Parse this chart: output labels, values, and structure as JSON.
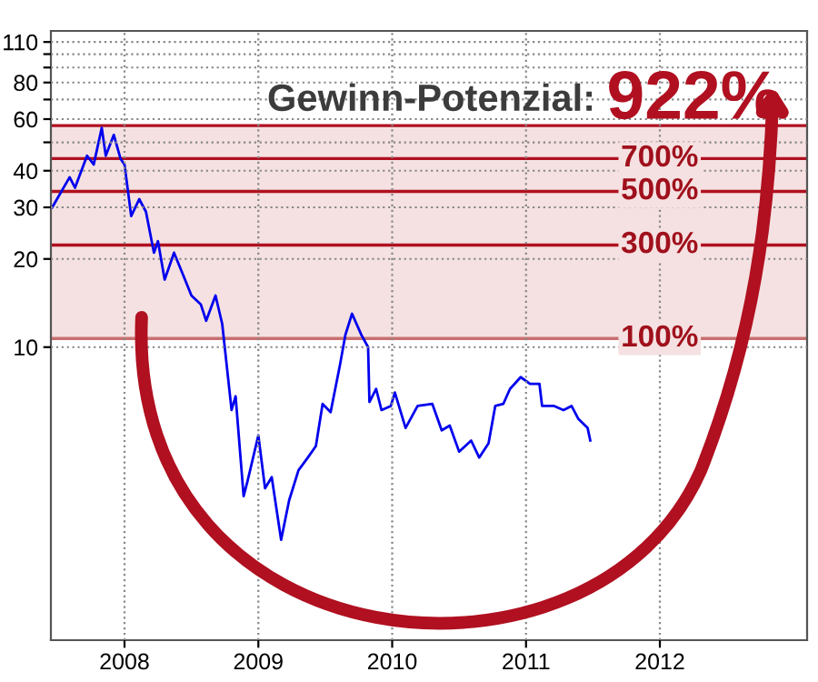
{
  "chart_data": {
    "type": "line",
    "annotations": [
      "Gewinn-Potenzial:",
      "922%",
      {
        "text": "700%",
        "y": 44
      },
      {
        "text": "500%",
        "y": 34
      },
      {
        "text": "300%",
        "y": 22.3
      },
      {
        "text": "100%",
        "y": 10.7
      }
    ],
    "x": [
      2007.46,
      2007.59,
      2007.63,
      2007.72,
      2007.77,
      2007.83,
      2007.86,
      2007.92,
      2007.97,
      2008.0,
      2008.05,
      2008.11,
      2008.16,
      2008.22,
      2008.25,
      2008.3,
      2008.37,
      2008.43,
      2008.5,
      2008.57,
      2008.61,
      2008.68,
      2008.73,
      2008.8,
      2008.83,
      2008.89,
      2008.92,
      2009.0,
      2009.05,
      2009.1,
      2009.17,
      2009.23,
      2009.3,
      2009.37,
      2009.43,
      2009.48,
      2009.54,
      2009.61,
      2009.65,
      2009.7,
      2009.77,
      2009.82,
      2009.83,
      2009.88,
      2009.92,
      2009.99,
      2010.02,
      2010.1,
      2010.19,
      2010.3,
      2010.37,
      2010.43,
      2010.5,
      2010.59,
      2010.65,
      2010.72,
      2010.77,
      2010.83,
      2010.88,
      2010.96,
      2011.03,
      2011.1,
      2011.12,
      2011.21,
      2011.28,
      2011.34,
      2011.39,
      2011.46,
      2011.48
    ],
    "series": [
      {
        "color": "#0000ee",
        "values": [
          30,
          38,
          35,
          45,
          42,
          56,
          45,
          53,
          44,
          42,
          28,
          32,
          29,
          21,
          23,
          17,
          21,
          18,
          15,
          14,
          12.3,
          15,
          12,
          6.1,
          6.8,
          3.1,
          3.5,
          5.0,
          3.3,
          3.6,
          2.2,
          3.0,
          3.8,
          4.2,
          4.6,
          6.4,
          6.0,
          8.7,
          11,
          13,
          11,
          10,
          6.5,
          7.2,
          6.1,
          6.3,
          7.0,
          5.3,
          6.3,
          6.4,
          5.2,
          5.4,
          4.4,
          4.8,
          4.2,
          4.7,
          6.3,
          6.4,
          7.2,
          7.9,
          7.5,
          7.5,
          6.3,
          6.3,
          6.1,
          6.3,
          5.7,
          5.3,
          4.8
        ]
      }
    ],
    "log": "y",
    "xlim": [
      2007.45,
      2013.1
    ],
    "ylim": [
      1,
      120
    ],
    "xticks": [
      2008,
      2009,
      2010,
      2011,
      2012
    ],
    "yticks": [
      10,
      20,
      30,
      40,
      {
        "value": 50,
        "label": null
      },
      60,
      {
        "value": 70,
        "label": null
      },
      80,
      {
        "value": 90,
        "label": null
      },
      {
        "value": 100,
        "label": null
      },
      110
    ],
    "grid": true,
    "bands": [
      {
        "axis": "y",
        "from": 10.7,
        "to": 57,
        "color": "#f5e1e1"
      }
    ],
    "ref_lines": [
      {
        "axis": "y",
        "value": 57,
        "label": null,
        "color": "#b01020"
      },
      {
        "axis": "y",
        "value": 44,
        "label": null,
        "color": "#b01020"
      },
      {
        "axis": "y",
        "value": 34,
        "label": null,
        "color": "#b01020"
      },
      {
        "axis": "y",
        "value": 22.3,
        "label": null,
        "color": "#b01020"
      },
      {
        "axis": "y",
        "value": 10.7,
        "label": null,
        "color": "#c87070"
      }
    ]
  }
}
